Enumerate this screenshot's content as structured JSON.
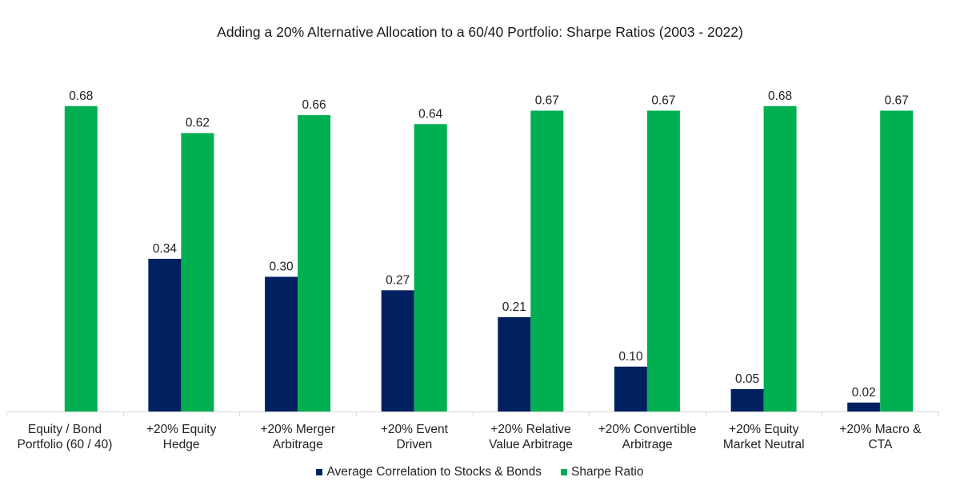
{
  "chart_data": {
    "type": "bar",
    "title": "Adding a 20% Alternative Allocation to a 60/40 Portfolio: Sharpe Ratios (2003 - 2022)",
    "xlabel": "",
    "ylabel": "",
    "ylim": [
      0,
      0.8
    ],
    "grid": false,
    "legend_position": "bottom",
    "categories": [
      "Equity / Bond\nPortfolio (60 / 40)",
      "+20% Equity\nHedge",
      "+20% Merger\nArbitrage",
      "+20% Event\nDriven",
      "+20% Relative\nValue Arbitrage",
      "+20% Convertible\nArbitrage",
      "+20% Equity\nMarket Neutral",
      "+20% Macro &\nCTA"
    ],
    "series": [
      {
        "name": "Average Correlation to Stocks & Bonds",
        "color": "#002060",
        "values": [
          null,
          0.34,
          0.3,
          0.27,
          0.21,
          0.1,
          0.05,
          0.02
        ],
        "labels": [
          "",
          "0.34",
          "0.30",
          "0.27",
          "0.21",
          "0.10",
          "0.05",
          "0.02"
        ]
      },
      {
        "name": "Sharpe Ratio",
        "color": "#00AF50",
        "values": [
          0.68,
          0.62,
          0.66,
          0.64,
          0.67,
          0.67,
          0.68,
          0.67
        ],
        "labels": [
          "0.68",
          "0.62",
          "0.66",
          "0.64",
          "0.67",
          "0.67",
          "0.68",
          "0.67"
        ]
      }
    ]
  }
}
